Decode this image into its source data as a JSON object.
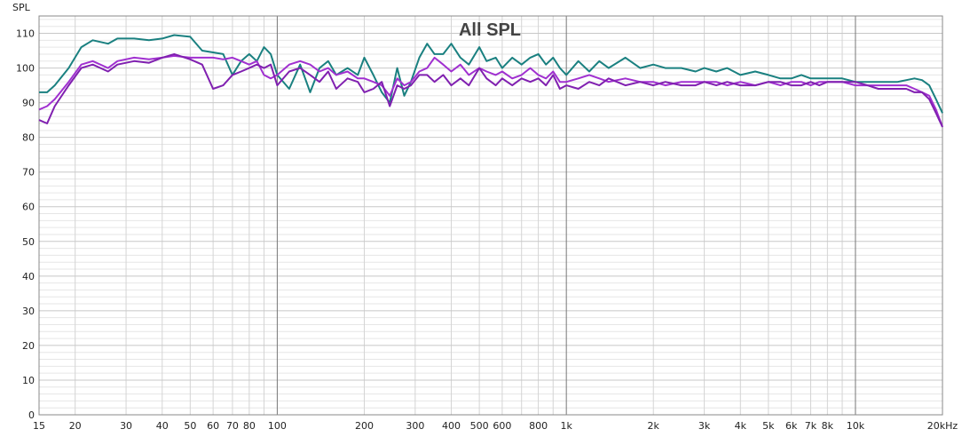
{
  "chart_data": {
    "type": "line",
    "title": "All SPL",
    "ylabel": "SPL",
    "xlabel": "",
    "x_scale": "log",
    "xlim": [
      15,
      20000
    ],
    "ylim": [
      0,
      115
    ],
    "grid": true,
    "y_ticks": [
      "0",
      "10",
      "20",
      "30",
      "40",
      "50",
      "60",
      "70",
      "80",
      "90",
      "100",
      "110"
    ],
    "x_ticks": [
      {
        "v": 15,
        "label": "15"
      },
      {
        "v": 20,
        "label": "20"
      },
      {
        "v": 30,
        "label": "30"
      },
      {
        "v": 40,
        "label": "40"
      },
      {
        "v": 50,
        "label": "50"
      },
      {
        "v": 60,
        "label": "60"
      },
      {
        "v": 70,
        "label": "70"
      },
      {
        "v": 80,
        "label": "80"
      },
      {
        "v": 100,
        "label": "100"
      },
      {
        "v": 200,
        "label": "200"
      },
      {
        "v": 300,
        "label": "300"
      },
      {
        "v": 400,
        "label": "400"
      },
      {
        "v": 500,
        "label": "500"
      },
      {
        "v": 600,
        "label": "600"
      },
      {
        "v": 800,
        "label": "800"
      },
      {
        "v": 1000,
        "label": "1k"
      },
      {
        "v": 2000,
        "label": "2k"
      },
      {
        "v": 3000,
        "label": "3k"
      },
      {
        "v": 4000,
        "label": "4k"
      },
      {
        "v": 5000,
        "label": "5k"
      },
      {
        "v": 6000,
        "label": "6k"
      },
      {
        "v": 7000,
        "label": "7k"
      },
      {
        "v": 8000,
        "label": "8k"
      },
      {
        "v": 10000,
        "label": "10k"
      },
      {
        "v": 20000,
        "label": "20kHz"
      }
    ],
    "series": [
      {
        "color": "#1a8080",
        "points": [
          [
            15,
            93
          ],
          [
            16,
            93
          ],
          [
            17,
            95
          ],
          [
            19,
            100
          ],
          [
            21,
            106
          ],
          [
            23,
            108
          ],
          [
            26,
            107
          ],
          [
            28,
            108.5
          ],
          [
            32,
            108.5
          ],
          [
            36,
            108
          ],
          [
            40,
            108.5
          ],
          [
            44,
            109.5
          ],
          [
            50,
            109
          ],
          [
            55,
            105
          ],
          [
            60,
            104.5
          ],
          [
            65,
            104
          ],
          [
            70,
            98
          ],
          [
            75,
            102
          ],
          [
            80,
            104
          ],
          [
            85,
            102
          ],
          [
            90,
            106
          ],
          [
            95,
            104
          ],
          [
            100,
            98
          ],
          [
            110,
            94
          ],
          [
            120,
            101
          ],
          [
            130,
            93
          ],
          [
            140,
            100
          ],
          [
            150,
            102
          ],
          [
            160,
            98
          ],
          [
            175,
            100
          ],
          [
            190,
            98
          ],
          [
            200,
            103
          ],
          [
            215,
            98
          ],
          [
            230,
            93
          ],
          [
            245,
            90
          ],
          [
            260,
            100
          ],
          [
            275,
            92
          ],
          [
            290,
            96
          ],
          [
            310,
            103
          ],
          [
            330,
            107
          ],
          [
            350,
            104
          ],
          [
            375,
            104
          ],
          [
            400,
            107
          ],
          [
            430,
            103
          ],
          [
            460,
            101
          ],
          [
            500,
            106
          ],
          [
            530,
            102
          ],
          [
            570,
            103
          ],
          [
            600,
            100
          ],
          [
            650,
            103
          ],
          [
            700,
            101
          ],
          [
            750,
            103
          ],
          [
            800,
            104
          ],
          [
            850,
            101
          ],
          [
            900,
            103
          ],
          [
            950,
            100
          ],
          [
            1000,
            98
          ],
          [
            1100,
            102
          ],
          [
            1200,
            99
          ],
          [
            1300,
            102
          ],
          [
            1400,
            100
          ],
          [
            1600,
            103
          ],
          [
            1800,
            100
          ],
          [
            2000,
            101
          ],
          [
            2200,
            100
          ],
          [
            2500,
            100
          ],
          [
            2800,
            99
          ],
          [
            3000,
            100
          ],
          [
            3300,
            99
          ],
          [
            3600,
            100
          ],
          [
            4000,
            98
          ],
          [
            4500,
            99
          ],
          [
            5000,
            98
          ],
          [
            5500,
            97
          ],
          [
            6000,
            97
          ],
          [
            6500,
            98
          ],
          [
            7000,
            97
          ],
          [
            7500,
            97
          ],
          [
            8000,
            97
          ],
          [
            9000,
            97
          ],
          [
            10000,
            96
          ],
          [
            11000,
            96
          ],
          [
            12000,
            96
          ],
          [
            13000,
            96
          ],
          [
            14000,
            96
          ],
          [
            15000,
            96.5
          ],
          [
            16000,
            97
          ],
          [
            17000,
            96.5
          ],
          [
            18000,
            95
          ],
          [
            19000,
            91
          ],
          [
            20000,
            87
          ]
        ]
      },
      {
        "color": "#a030d0",
        "points": [
          [
            15,
            88
          ],
          [
            16,
            89
          ],
          [
            17,
            91
          ],
          [
            19,
            96
          ],
          [
            21,
            101
          ],
          [
            23,
            102
          ],
          [
            26,
            100
          ],
          [
            28,
            102
          ],
          [
            32,
            103
          ],
          [
            36,
            102.5
          ],
          [
            40,
            103
          ],
          [
            44,
            103.5
          ],
          [
            50,
            103
          ],
          [
            55,
            103
          ],
          [
            60,
            103
          ],
          [
            65,
            102.5
          ],
          [
            70,
            103
          ],
          [
            75,
            102
          ],
          [
            80,
            101
          ],
          [
            85,
            102
          ],
          [
            90,
            98
          ],
          [
            95,
            97
          ],
          [
            100,
            98
          ],
          [
            110,
            101
          ],
          [
            120,
            102
          ],
          [
            130,
            101
          ],
          [
            140,
            99
          ],
          [
            150,
            100
          ],
          [
            160,
            98
          ],
          [
            175,
            99
          ],
          [
            190,
            97
          ],
          [
            200,
            97
          ],
          [
            215,
            96
          ],
          [
            230,
            95
          ],
          [
            245,
            92
          ],
          [
            260,
            97
          ],
          [
            275,
            95
          ],
          [
            290,
            96
          ],
          [
            310,
            99
          ],
          [
            330,
            100
          ],
          [
            350,
            103
          ],
          [
            375,
            101
          ],
          [
            400,
            99
          ],
          [
            430,
            101
          ],
          [
            460,
            98
          ],
          [
            500,
            100
          ],
          [
            530,
            99
          ],
          [
            570,
            98
          ],
          [
            600,
            99
          ],
          [
            650,
            97
          ],
          [
            700,
            98
          ],
          [
            750,
            100
          ],
          [
            800,
            98
          ],
          [
            850,
            97
          ],
          [
            900,
            99
          ],
          [
            950,
            96
          ],
          [
            1000,
            96
          ],
          [
            1100,
            97
          ],
          [
            1200,
            98
          ],
          [
            1300,
            97
          ],
          [
            1400,
            96
          ],
          [
            1600,
            97
          ],
          [
            1800,
            96
          ],
          [
            2000,
            96
          ],
          [
            2200,
            95
          ],
          [
            2500,
            96
          ],
          [
            2800,
            96
          ],
          [
            3000,
            96
          ],
          [
            3300,
            96
          ],
          [
            3600,
            95
          ],
          [
            4000,
            96
          ],
          [
            4500,
            95
          ],
          [
            5000,
            96
          ],
          [
            5500,
            95
          ],
          [
            6000,
            96
          ],
          [
            6500,
            96
          ],
          [
            7000,
            95
          ],
          [
            7500,
            96
          ],
          [
            8000,
            96
          ],
          [
            9000,
            96
          ],
          [
            10000,
            95
          ],
          [
            11000,
            95
          ],
          [
            12000,
            95
          ],
          [
            13000,
            95
          ],
          [
            14000,
            95
          ],
          [
            15000,
            95
          ],
          [
            16000,
            94
          ],
          [
            17000,
            93
          ],
          [
            18000,
            92
          ],
          [
            19000,
            88
          ],
          [
            20000,
            83
          ]
        ]
      },
      {
        "color": "#8020b0",
        "points": [
          [
            15,
            85
          ],
          [
            16,
            84
          ],
          [
            17,
            89
          ],
          [
            19,
            95
          ],
          [
            21,
            100
          ],
          [
            23,
            101
          ],
          [
            26,
            99
          ],
          [
            28,
            101
          ],
          [
            32,
            102
          ],
          [
            36,
            101.5
          ],
          [
            40,
            103
          ],
          [
            44,
            104
          ],
          [
            50,
            102.5
          ],
          [
            55,
            101
          ],
          [
            60,
            94
          ],
          [
            65,
            95
          ],
          [
            70,
            98
          ],
          [
            75,
            99
          ],
          [
            80,
            100
          ],
          [
            85,
            101
          ],
          [
            90,
            100
          ],
          [
            95,
            101
          ],
          [
            100,
            95
          ],
          [
            110,
            99
          ],
          [
            120,
            100
          ],
          [
            130,
            98
          ],
          [
            140,
            96
          ],
          [
            150,
            99
          ],
          [
            160,
            94
          ],
          [
            175,
            97
          ],
          [
            190,
            96
          ],
          [
            200,
            93
          ],
          [
            215,
            94
          ],
          [
            230,
            96
          ],
          [
            245,
            89
          ],
          [
            260,
            95
          ],
          [
            275,
            94
          ],
          [
            290,
            95
          ],
          [
            310,
            98
          ],
          [
            330,
            98
          ],
          [
            350,
            96
          ],
          [
            375,
            98
          ],
          [
            400,
            95
          ],
          [
            430,
            97
          ],
          [
            460,
            95
          ],
          [
            500,
            100
          ],
          [
            530,
            97
          ],
          [
            570,
            95
          ],
          [
            600,
            97
          ],
          [
            650,
            95
          ],
          [
            700,
            97
          ],
          [
            750,
            96
          ],
          [
            800,
            97
          ],
          [
            850,
            95
          ],
          [
            900,
            98
          ],
          [
            950,
            94
          ],
          [
            1000,
            95
          ],
          [
            1100,
            94
          ],
          [
            1200,
            96
          ],
          [
            1300,
            95
          ],
          [
            1400,
            97
          ],
          [
            1600,
            95
          ],
          [
            1800,
            96
          ],
          [
            2000,
            95
          ],
          [
            2200,
            96
          ],
          [
            2500,
            95
          ],
          [
            2800,
            95
          ],
          [
            3000,
            96
          ],
          [
            3300,
            95
          ],
          [
            3600,
            96
          ],
          [
            4000,
            95
          ],
          [
            4500,
            95
          ],
          [
            5000,
            96
          ],
          [
            5500,
            96
          ],
          [
            6000,
            95
          ],
          [
            6500,
            95
          ],
          [
            7000,
            96
          ],
          [
            7500,
            95
          ],
          [
            8000,
            96
          ],
          [
            9000,
            96
          ],
          [
            10000,
            96
          ],
          [
            11000,
            95
          ],
          [
            12000,
            94
          ],
          [
            13000,
            94
          ],
          [
            14000,
            94
          ],
          [
            15000,
            94
          ],
          [
            16000,
            93
          ],
          [
            17000,
            93
          ],
          [
            18000,
            91
          ],
          [
            19000,
            87
          ],
          [
            20000,
            83
          ]
        ]
      }
    ]
  }
}
